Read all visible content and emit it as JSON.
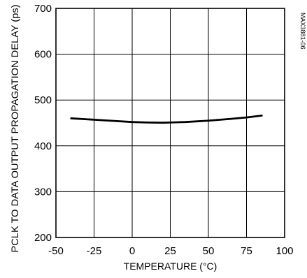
{
  "chart_data": {
    "type": "line",
    "title": "",
    "xlabel": "TEMPERATURE (°C)",
    "ylabel": "PCLK TO DATA OUTPUT PROPAGATION DELAY (ps)",
    "xlim": [
      -50,
      100
    ],
    "ylim": [
      200,
      700
    ],
    "xticks": [
      -50,
      -25,
      0,
      25,
      50,
      75,
      100
    ],
    "yticks": [
      200,
      300,
      400,
      500,
      600,
      700
    ],
    "xtick_labels": [
      "-50",
      "-25",
      "0",
      "25",
      "50",
      "75",
      "100"
    ],
    "ytick_labels": [
      "200",
      "300",
      "400",
      "500",
      "600",
      "700"
    ],
    "grid": true,
    "legend": "none",
    "annotation": "MAX3881-06",
    "series": [
      {
        "x": [
          -40,
          -25,
          -10,
          0,
          10,
          20,
          25,
          35,
          50,
          65,
          75,
          85
        ],
        "y": [
          460,
          457,
          454,
          452,
          451,
          450.5,
          451,
          452,
          455,
          459,
          462,
          466
        ],
        "color": "#000000"
      }
    ]
  }
}
